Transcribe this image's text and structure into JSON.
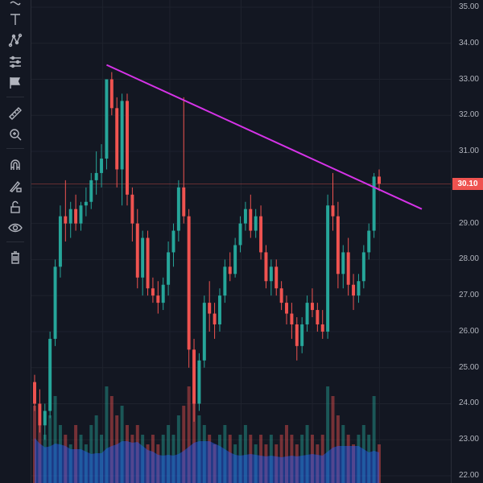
{
  "toolbar": {
    "tools": [
      {
        "name": "curve-tool"
      },
      {
        "name": "text-tool"
      },
      {
        "name": "pattern-tool"
      },
      {
        "name": "forecast-tool"
      },
      {
        "name": "flag-tool"
      },
      {
        "name": "ruler-tool"
      },
      {
        "name": "zoom-in-tool"
      },
      {
        "name": "magnet-tool"
      },
      {
        "name": "lock-drawing-tool"
      },
      {
        "name": "unlock-tool"
      },
      {
        "name": "eye-tool"
      },
      {
        "name": "trash-tool"
      }
    ]
  },
  "price_axis": {
    "ticks": [
      "35.00",
      "34.00",
      "33.00",
      "32.00",
      "31.00",
      "30.00",
      "29.00",
      "28.00",
      "27.00",
      "26.00",
      "25.00",
      "24.00",
      "23.00",
      "22.00"
    ],
    "current_price": "30.10"
  },
  "colors": {
    "background": "#131722",
    "up": "#26a69a",
    "down": "#ef5350",
    "trendline": "#d633e8",
    "grid": "#1e222d"
  },
  "chart_data": {
    "type": "candlestick",
    "ylim": [
      21.8,
      35.2
    ],
    "current_price": 30.1,
    "trendline": {
      "start": 33.4,
      "end": 29.4
    },
    "candles": [
      [
        24.6,
        24.8,
        23.8,
        24.0
      ],
      [
        24.0,
        24.4,
        23.2,
        23.4
      ],
      [
        23.4,
        24.0,
        23.0,
        23.8
      ],
      [
        23.8,
        26.0,
        23.6,
        25.8
      ],
      [
        25.8,
        28.0,
        25.6,
        27.8
      ],
      [
        27.8,
        29.5,
        27.5,
        29.2
      ],
      [
        29.2,
        30.2,
        28.5,
        29.0
      ],
      [
        29.0,
        29.6,
        28.6,
        29.4
      ],
      [
        29.4,
        29.8,
        28.8,
        29.0
      ],
      [
        29.0,
        29.6,
        28.8,
        29.5
      ],
      [
        29.5,
        30.0,
        29.2,
        29.6
      ],
      [
        29.6,
        30.4,
        29.4,
        30.2
      ],
      [
        30.2,
        31.0,
        29.8,
        30.4
      ],
      [
        30.4,
        31.2,
        30.0,
        30.8
      ],
      [
        30.8,
        33.0,
        30.5,
        33.0
      ],
      [
        33.0,
        33.2,
        32.0,
        32.2
      ],
      [
        32.2,
        32.5,
        30.0,
        30.5
      ],
      [
        30.5,
        32.6,
        29.5,
        32.4
      ],
      [
        32.4,
        32.6,
        29.5,
        29.8
      ],
      [
        29.8,
        30.0,
        28.5,
        29.0
      ],
      [
        29.0,
        29.4,
        27.2,
        27.5
      ],
      [
        27.5,
        28.8,
        27.0,
        28.6
      ],
      [
        28.6,
        28.8,
        27.0,
        27.2
      ],
      [
        27.2,
        27.5,
        26.8,
        27.0
      ],
      [
        27.0,
        27.4,
        26.5,
        26.8
      ],
      [
        26.8,
        27.5,
        26.6,
        27.3
      ],
      [
        27.3,
        28.5,
        27.0,
        28.2
      ],
      [
        28.2,
        29.0,
        27.8,
        28.8
      ],
      [
        28.8,
        30.2,
        28.5,
        30.0
      ],
      [
        30.0,
        32.5,
        29.0,
        29.2
      ],
      [
        29.2,
        29.4,
        25.0,
        25.5
      ],
      [
        25.5,
        25.8,
        23.5,
        24.0
      ],
      [
        24.0,
        25.4,
        23.8,
        25.2
      ],
      [
        25.2,
        27.0,
        25.0,
        26.8
      ],
      [
        26.8,
        27.4,
        26.0,
        26.5
      ],
      [
        26.5,
        26.8,
        25.8,
        26.2
      ],
      [
        26.2,
        27.2,
        26.0,
        27.0
      ],
      [
        27.0,
        28.0,
        26.8,
        27.8
      ],
      [
        27.8,
        28.2,
        27.4,
        27.6
      ],
      [
        27.6,
        28.6,
        27.5,
        28.4
      ],
      [
        28.4,
        29.2,
        28.2,
        29.0
      ],
      [
        29.0,
        29.6,
        28.8,
        29.4
      ],
      [
        29.4,
        29.8,
        28.6,
        28.8
      ],
      [
        28.8,
        29.4,
        28.6,
        29.2
      ],
      [
        29.2,
        29.5,
        28.0,
        28.2
      ],
      [
        28.2,
        28.4,
        27.2,
        27.4
      ],
      [
        27.4,
        28.0,
        27.0,
        27.8
      ],
      [
        27.8,
        28.0,
        27.0,
        27.2
      ],
      [
        27.2,
        27.4,
        26.6,
        26.8
      ],
      [
        26.8,
        27.0,
        26.2,
        26.5
      ],
      [
        26.5,
        26.8,
        25.8,
        26.2
      ],
      [
        26.2,
        26.4,
        25.2,
        25.6
      ],
      [
        25.6,
        26.4,
        25.4,
        26.2
      ],
      [
        26.2,
        27.0,
        26.0,
        26.8
      ],
      [
        26.8,
        27.2,
        26.4,
        26.6
      ],
      [
        26.6,
        26.8,
        26.0,
        26.2
      ],
      [
        26.2,
        26.6,
        25.8,
        26.0
      ],
      [
        26.0,
        29.8,
        25.8,
        29.5
      ],
      [
        29.5,
        30.4,
        28.8,
        29.2
      ],
      [
        29.2,
        29.6,
        27.2,
        27.6
      ],
      [
        27.6,
        28.4,
        27.2,
        28.2
      ],
      [
        28.2,
        28.6,
        27.0,
        27.3
      ],
      [
        27.3,
        27.6,
        26.6,
        27.0
      ],
      [
        27.0,
        27.6,
        26.8,
        27.4
      ],
      [
        27.4,
        28.4,
        27.2,
        28.2
      ],
      [
        28.2,
        29.0,
        28.0,
        28.8
      ],
      [
        28.8,
        30.4,
        28.6,
        30.3
      ],
      [
        30.3,
        30.5,
        29.9,
        30.1
      ]
    ],
    "volumes": [
      8,
      6,
      5,
      7,
      9,
      6,
      5,
      4,
      6,
      5,
      4,
      6,
      7,
      5,
      10,
      9,
      7,
      8,
      6,
      5,
      6,
      5,
      4,
      5,
      4,
      5,
      6,
      5,
      7,
      8,
      10,
      9,
      7,
      6,
      5,
      4,
      5,
      6,
      5,
      4,
      5,
      6,
      5,
      4,
      5,
      4,
      5,
      4,
      5,
      6,
      5,
      4,
      5,
      6,
      5,
      4,
      5,
      10,
      9,
      7,
      6,
      5,
      4,
      5,
      6,
      5,
      9,
      4
    ]
  }
}
